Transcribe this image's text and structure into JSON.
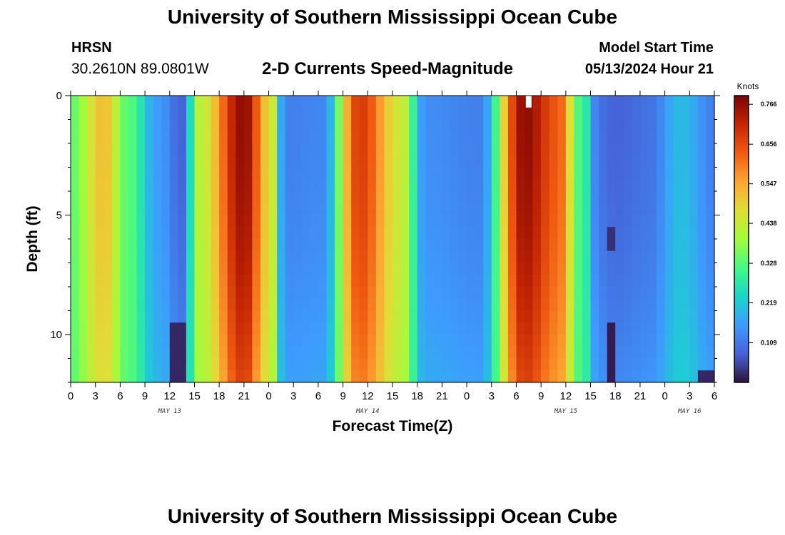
{
  "header": {
    "title": "University of Southern Mississippi Ocean Cube",
    "station": "HRSN",
    "coordinates": "30.2610N  89.0801W",
    "subtitle": "2-D Currents Speed-Magnitude",
    "model_start_label": "Model Start Time",
    "model_start_value": "05/13/2024 Hour 21"
  },
  "footer": {
    "title": "University of Southern Mississippi Ocean Cube"
  },
  "colors": {
    "scale": [
      "#30123b",
      "#4662d8",
      "#3e9bfe",
      "#18d6cb",
      "#46f884",
      "#a2fc3c",
      "#e1dd37",
      "#fea632",
      "#f05b12",
      "#c42503",
      "#7a0403"
    ]
  },
  "chart_data": {
    "type": "heatmap",
    "xlabel": "Forecast Time(Z)",
    "ylabel": "Depth (ft)",
    "xlim": [
      0,
      78
    ],
    "ylim": [
      0,
      12
    ],
    "y_ticks": [
      "0",
      "5",
      "10"
    ],
    "y_tick_values": [
      0,
      5,
      10
    ],
    "x_tick_labels": [
      "0",
      "3",
      "6",
      "9",
      "12",
      "15",
      "18",
      "21",
      "0",
      "3",
      "6",
      "9",
      "12",
      "15",
      "18",
      "21",
      "0",
      "3",
      "6",
      "9",
      "12",
      "15",
      "18",
      "21",
      "0",
      "3",
      "6"
    ],
    "day_labels": [
      {
        "text": "MAY 13",
        "x": 12
      },
      {
        "text": "MAY 14",
        "x": 36
      },
      {
        "text": "MAY 15",
        "x": 60
      },
      {
        "text": "MAY 16",
        "x": 75
      }
    ],
    "colorbar": {
      "unit": "Knots",
      "min": 0.0,
      "max": 0.79,
      "labels": [
        "0.766",
        "0.656",
        "0.547",
        "0.438",
        "0.328",
        "0.219",
        "0.109"
      ],
      "values": [
        0.766,
        0.656,
        0.547,
        0.438,
        0.328,
        0.219,
        0.109
      ]
    },
    "surface_speed_profile": [
      {
        "hour": 0,
        "speed": 0.34
      },
      {
        "hour": 4,
        "speed": 0.52
      },
      {
        "hour": 7,
        "speed": 0.33
      },
      {
        "hour": 10.5,
        "speed": 0.16
      },
      {
        "hour": 13.5,
        "speed": 0.08
      },
      {
        "hour": 15.5,
        "speed": 0.42
      },
      {
        "hour": 21,
        "speed": 0.77
      },
      {
        "hour": 24,
        "speed": 0.5
      },
      {
        "hour": 26,
        "speed": 0.12
      },
      {
        "hour": 30.5,
        "speed": 0.13
      },
      {
        "hour": 35,
        "speed": 0.68
      },
      {
        "hour": 40,
        "speed": 0.45
      },
      {
        "hour": 43,
        "speed": 0.14
      },
      {
        "hour": 49.5,
        "speed": 0.12
      },
      {
        "hour": 55,
        "speed": 0.77
      },
      {
        "hour": 59,
        "speed": 0.64
      },
      {
        "hour": 62,
        "speed": 0.3
      },
      {
        "hour": 64,
        "speed": 0.1
      },
      {
        "hour": 66,
        "speed": 0.08
      },
      {
        "hour": 70,
        "speed": 0.1
      },
      {
        "hour": 74,
        "speed": 0.2
      },
      {
        "hour": 78,
        "speed": 0.12
      }
    ],
    "near_bottom_patches": [
      {
        "hour": 13,
        "depth_from": 9.5,
        "depth_to": 12,
        "speed": 0.02
      },
      {
        "hour": 65.5,
        "depth_from": 5.5,
        "depth_to": 6.5,
        "speed": 0.03
      },
      {
        "hour": 65.5,
        "depth_from": 9.5,
        "depth_to": 12,
        "speed": 0.01
      },
      {
        "hour": 77,
        "depth_from": 11.5,
        "depth_to": 12,
        "speed": 0.02
      }
    ],
    "missing_cell": {
      "hour": 55.5,
      "depth": 0
    }
  }
}
